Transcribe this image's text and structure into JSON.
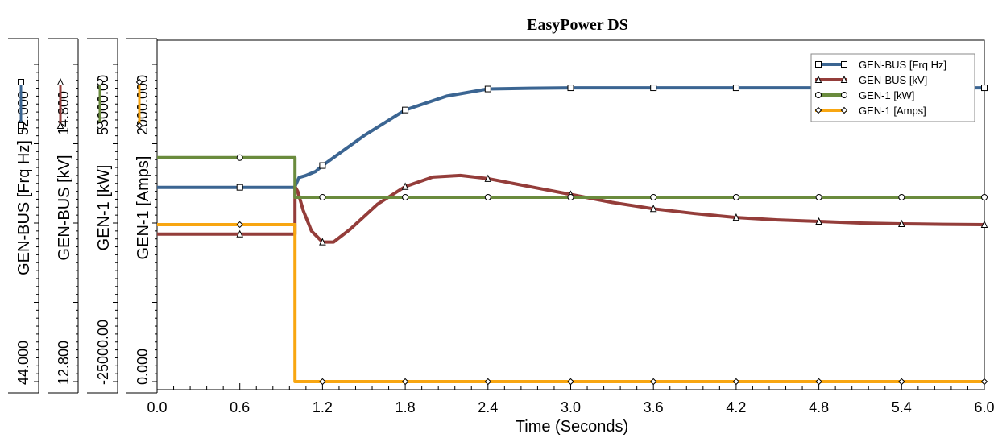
{
  "chart_data": {
    "type": "line",
    "title": "EasyPower DS",
    "xlabel": "Time (Seconds)",
    "xlim": [
      0.0,
      6.0
    ],
    "xticks": [
      "0.0",
      "0.6",
      "1.2",
      "1.8",
      "2.4",
      "3.0",
      "3.6",
      "4.2",
      "4.8",
      "5.4",
      "6.0"
    ],
    "legend_position": "top-right",
    "grid": false,
    "axes": [
      {
        "label": "GEN-BUS [Frq Hz]",
        "min_label": "44.000",
        "max_label": "52.000",
        "range": [
          44,
          52
        ]
      },
      {
        "label": "GEN-BUS [kV]",
        "min_label": "12.800",
        "max_label": "14.800",
        "range": [
          12.8,
          14.8
        ]
      },
      {
        "label": "GEN-1 [kW]",
        "min_label": "-25000.00",
        "max_label": "55000.00",
        "range": [
          -25000,
          55000
        ]
      },
      {
        "label": "GEN-1 [Amps]",
        "min_label": "0.000",
        "max_label": "2000.000",
        "range": [
          0,
          2000
        ]
      }
    ],
    "series": [
      {
        "name": "GEN-BUS [Frq Hz]",
        "color": "#3b6592",
        "marker": "square",
        "axis": 0,
        "x": [
          0.0,
          1.0,
          1.0,
          1.03,
          1.08,
          1.15,
          1.2,
          1.3,
          1.5,
          1.8,
          2.1,
          2.4,
          2.7,
          3.0,
          3.6,
          4.2,
          4.8,
          5.4,
          6.0
        ],
        "y": [
          48.9,
          48.9,
          48.92,
          49.15,
          49.2,
          49.3,
          49.45,
          49.7,
          50.2,
          50.85,
          51.2,
          51.38,
          51.4,
          51.41,
          51.41,
          51.41,
          51.41,
          51.41,
          51.41
        ],
        "markers_x": [
          0.6,
          1.2,
          1.8,
          2.4,
          3.0,
          3.6,
          4.2,
          4.8,
          5.4,
          6.0
        ]
      },
      {
        "name": "GEN-BUS [kV]",
        "color": "#943d3a",
        "marker": "triangle",
        "axis": 1,
        "x": [
          0.0,
          1.0,
          1.0,
          1.02,
          1.06,
          1.12,
          1.2,
          1.28,
          1.4,
          1.6,
          1.8,
          2.0,
          2.2,
          2.4,
          2.7,
          3.0,
          3.3,
          3.6,
          3.9,
          4.2,
          4.5,
          4.8,
          5.1,
          5.4,
          5.7,
          6.0
        ],
        "y": [
          13.73,
          13.73,
          14.03,
          14.0,
          13.88,
          13.75,
          13.68,
          13.68,
          13.76,
          13.92,
          14.03,
          14.09,
          14.1,
          14.08,
          14.03,
          13.98,
          13.93,
          13.89,
          13.86,
          13.835,
          13.82,
          13.81,
          13.8,
          13.795,
          13.792,
          13.79
        ],
        "markers_x": [
          0.6,
          1.2,
          1.8,
          2.4,
          3.0,
          3.6,
          4.2,
          4.8,
          5.4,
          6.0
        ]
      },
      {
        "name": "GEN-1 [kW]",
        "color": "#6a8b3d",
        "marker": "circle",
        "axis": 2,
        "x": [
          0.0,
          1.0,
          1.0,
          6.0
        ],
        "y": [
          31500,
          31500,
          21500,
          21500
        ],
        "markers_x": [
          0.6,
          1.2,
          1.8,
          2.4,
          3.0,
          3.6,
          4.2,
          4.8,
          5.4,
          6.0
        ]
      },
      {
        "name": "GEN-1 [Amps]",
        "color": "#f8a611",
        "marker": "diamond",
        "axis": 3,
        "x": [
          0.0,
          1.0,
          1.0,
          6.0
        ],
        "y": [
          990,
          990,
          0,
          0
        ],
        "markers_x": [
          0.6,
          1.2,
          1.8,
          2.4,
          3.0,
          3.6,
          4.2,
          4.8,
          5.4,
          6.0
        ]
      }
    ]
  }
}
